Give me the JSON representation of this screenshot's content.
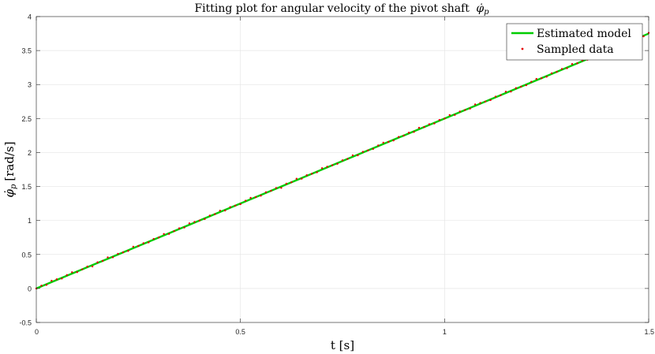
{
  "chart_data": {
    "type": "line",
    "title": "Fitting plot for angular velocity of the pivot shaft",
    "title_symbol": "φ̇",
    "title_symbol_sub": "p",
    "xlabel": "t [s]",
    "ylabel_symbol": "φ̇",
    "ylabel_symbol_sub": "p",
    "ylabel_unit": "[rad/s]",
    "xlim": [
      0,
      1.5
    ],
    "ylim": [
      -0.5,
      4
    ],
    "xticks": [
      0,
      0.5,
      1,
      1.5
    ],
    "xtick_labels": [
      "0",
      "0.5",
      "1",
      "1.5"
    ],
    "yticks": [
      -0.5,
      0,
      0.5,
      1,
      1.5,
      2,
      2.5,
      3,
      3.5,
      4
    ],
    "ytick_labels": [
      "-0.5",
      "0",
      "0.5",
      "1",
      "1.5",
      "2",
      "2.5",
      "3",
      "3.5",
      "4"
    ],
    "grid": true,
    "legend_position": "top-right",
    "series": [
      {
        "name": "Estimated model",
        "style": "line",
        "color": "#00cc00",
        "x": [
          0,
          1.5
        ],
        "y": [
          0,
          3.75
        ]
      },
      {
        "name": "Sampled data",
        "style": "markers",
        "color": "#e60000",
        "x_start": 0,
        "x_end": 1.5,
        "x_step": 0.0125,
        "slope": 2.5,
        "y_offsets": [
          0.0,
          0.01,
          -0.01,
          0.02,
          0.01,
          -0.01,
          0.01,
          0.02,
          -0.01,
          0.0,
          0.01,
          -0.02,
          0.01,
          0.0,
          0.02,
          -0.01,
          0.01,
          0.0,
          -0.01,
          0.02,
          0.0,
          0.01,
          -0.01,
          0.01,
          0.0,
          0.02,
          -0.01,
          0.0,
          0.01,
          -0.01,
          0.02,
          0.01,
          0.0,
          -0.01,
          0.01,
          0.0,
          0.02,
          -0.01,
          0.01,
          0.0,
          -0.01,
          0.01,
          0.02,
          0.0,
          -0.01,
          0.01,
          0.0,
          0.01,
          -0.02,
          0.01,
          0.0,
          0.02,
          -0.01,
          0.01,
          0.0,
          -0.01,
          0.02,
          0.01,
          0.0,
          -0.01,
          0.01,
          0.0,
          0.02,
          -0.01,
          0.01,
          0.0,
          -0.01,
          0.01,
          0.02,
          0.0,
          -0.01,
          0.01,
          0.0,
          0.01,
          -0.01,
          0.02,
          0.0,
          0.01,
          -0.01,
          0.01,
          0.0,
          0.02,
          -0.01,
          0.01,
          0.0,
          -0.01,
          0.02,
          0.01,
          0.0,
          -0.01,
          0.01,
          0.0,
          0.02,
          -0.01,
          0.01,
          0.0,
          -0.01,
          0.01,
          0.02,
          0.0,
          -0.01,
          0.01,
          0.0,
          0.01,
          -0.01,
          0.02,
          0.0,
          0.01,
          -0.01,
          0.01,
          0.0,
          0.02,
          -0.01,
          0.01,
          0.0,
          -0.01,
          0.02,
          0.01,
          0.0,
          -0.01,
          0.01
        ]
      }
    ]
  }
}
